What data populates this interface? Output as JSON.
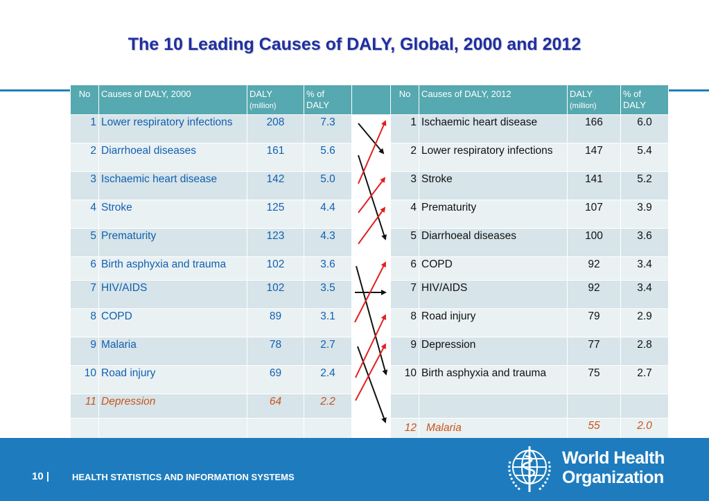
{
  "title": "The 10 Leading Causes of DALY, Global, 2000 and 2012",
  "table": {
    "headers_2000": {
      "no": "No",
      "cause": "Causes of DALY,  2000",
      "daly": "DALY",
      "daly_unit": "(million)",
      "pct_1": "% of",
      "pct_2": "DALY"
    },
    "headers_2012": {
      "no": "No",
      "cause": "Causes of DALY, 2012",
      "daly": "DALY",
      "daly_unit": "(million)",
      "pct_1": "% of",
      "pct_2": "DALY"
    },
    "rows": [
      {
        "left": {
          "no": "1",
          "cause": "Lower respiratory infections",
          "daly": "208",
          "pct": "7.3"
        },
        "right": {
          "no": "1",
          "cause": "Ischaemic heart disease",
          "daly": "166",
          "pct": "6.0"
        }
      },
      {
        "left": {
          "no": "2",
          "cause": "Diarrhoeal diseases",
          "daly": "161",
          "pct": "5.6"
        },
        "right": {
          "no": "2",
          "cause": "Lower respiratory infections",
          "daly": "147",
          "pct": "5.4"
        }
      },
      {
        "left": {
          "no": "3",
          "cause": "Ischaemic heart disease",
          "daly": "142",
          "pct": "5.0"
        },
        "right": {
          "no": "3",
          "cause": "Stroke",
          "daly": "141",
          "pct": "5.2"
        }
      },
      {
        "left": {
          "no": "4",
          "cause": "Stroke",
          "daly": "125",
          "pct": "4.4"
        },
        "right": {
          "no": "4",
          "cause": "Prematurity",
          "daly": "107",
          "pct": "3.9"
        }
      },
      {
        "left": {
          "no": "5",
          "cause": "Prematurity",
          "daly": "123",
          "pct": "4.3"
        },
        "right": {
          "no": "5",
          "cause": "Diarrhoeal diseases",
          "daly": "100",
          "pct": "3.6"
        }
      },
      {
        "left": {
          "no": "6",
          "cause": "Birth asphyxia and trauma",
          "daly": "102",
          "pct": "3.6"
        },
        "right": {
          "no": "6",
          "cause": "COPD",
          "daly": "92",
          "pct": "3.4"
        }
      },
      {
        "left": {
          "no": "7",
          "cause": "HIV/AIDS",
          "daly": "102",
          "pct": "3.5"
        },
        "right": {
          "no": "7",
          "cause": "HIV/AIDS",
          "daly": "92",
          "pct": "3.4"
        }
      },
      {
        "left": {
          "no": "8",
          "cause": "COPD",
          "daly": "89",
          "pct": "3.1"
        },
        "right": {
          "no": "8",
          "cause": "Road injury",
          "daly": "79",
          "pct": "2.9"
        }
      },
      {
        "left": {
          "no": "9",
          "cause": "Malaria",
          "daly": "78",
          "pct": "2.7"
        },
        "right": {
          "no": "9",
          "cause": "Depression",
          "daly": "77",
          "pct": "2.8"
        }
      },
      {
        "left": {
          "no": "10",
          "cause": "Road injury",
          "daly": "69",
          "pct": "2.4"
        },
        "right": {
          "no": "10",
          "cause": "Birth asphyxia and trauma",
          "daly": "75",
          "pct": "2.7"
        }
      }
    ],
    "extra_2000": {
      "no": "11",
      "cause": "Depression",
      "daly": "64",
      "pct": "2.2"
    },
    "extra_2012": {
      "no": "12",
      "cause": "Malaria",
      "daly": "55",
      "pct": "2.0"
    }
  },
  "colors": {
    "header_bg": "#56a9b0",
    "row_dark": "#d7e4e9",
    "row_light": "#eaf1f3",
    "cause_2000_text": "#1060b0",
    "outside_top10_text": "#c8541a",
    "arrow_up": "#e02020",
    "arrow_down": "#111111",
    "footer_bg": "#1e7cbe"
  },
  "footer": {
    "page_number": "10",
    "separator": "|",
    "section": "HEALTH STATISTICS AND INFORMATION SYSTEMS"
  },
  "logo": {
    "icon": "who-emblem-icon",
    "line1": "World Health",
    "line2": "Organization"
  }
}
